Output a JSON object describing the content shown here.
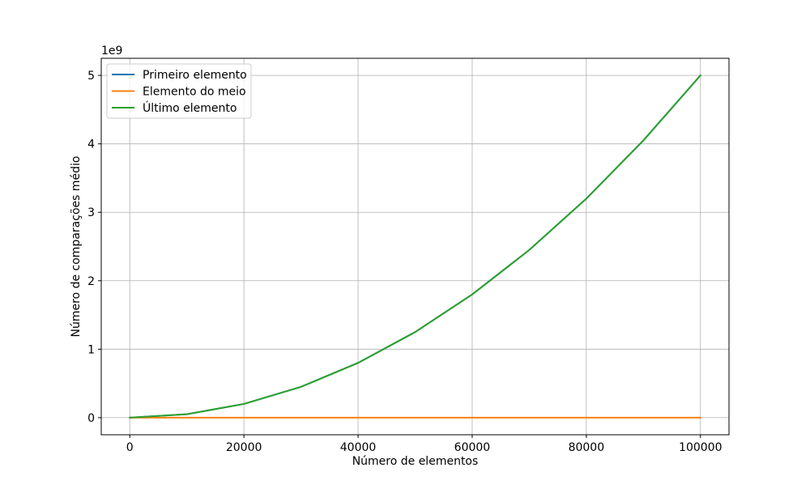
{
  "chart_data": {
    "type": "line",
    "xlabel": "Número de elementos",
    "ylabel": "Número de comparações médio",
    "y_offset_text": "1e9",
    "y_scale": 1000000000,
    "xlim": [
      -5000,
      105000
    ],
    "ylim": [
      -250000000,
      5250000000
    ],
    "x_ticks": [
      0,
      20000,
      40000,
      60000,
      80000,
      100000
    ],
    "y_ticks": [
      0,
      1,
      2,
      3,
      4,
      5
    ],
    "grid": true,
    "legend_position": "top-left",
    "x": [
      0,
      10000,
      20000,
      30000,
      40000,
      50000,
      60000,
      70000,
      80000,
      90000,
      100000
    ],
    "series": [
      {
        "name": "Primeiro elemento",
        "color": "#1f77b4",
        "values": [
          0,
          50000000,
          200000000,
          450000000,
          800000000,
          1250000000,
          1800000000,
          2450000000,
          3200000000,
          4050000000,
          5000000000
        ]
      },
      {
        "name": "Elemento do meio",
        "color": "#ff7f0e",
        "values": [
          0,
          0,
          0,
          0,
          0,
          0,
          0,
          0,
          0,
          0,
          0
        ]
      },
      {
        "name": "Último elemento",
        "color": "#2ca02c",
        "values": [
          0,
          50000000,
          200000000,
          450000000,
          800000000,
          1250000000,
          1800000000,
          2450000000,
          3200000000,
          4050000000,
          5000000000
        ]
      }
    ]
  }
}
